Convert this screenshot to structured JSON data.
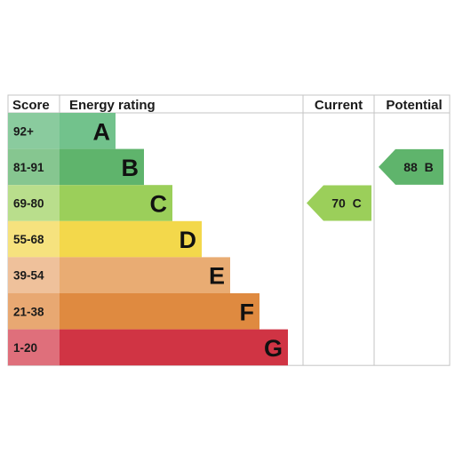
{
  "chart_data": {
    "type": "bar",
    "headers": {
      "score": "Score",
      "rating": "Energy rating",
      "current": "Current",
      "potential": "Potential"
    },
    "bands": [
      {
        "letter": "A",
        "range": "92+",
        "color": "#72c28c",
        "score_color": "#8acb9e"
      },
      {
        "letter": "B",
        "range": "81-91",
        "color": "#5fb46c",
        "score_color": "#86c690"
      },
      {
        "letter": "C",
        "range": "69-80",
        "color": "#9bcf5a",
        "score_color": "#b9de8c"
      },
      {
        "letter": "D",
        "range": "55-68",
        "color": "#f3d84b",
        "score_color": "#f6e27e"
      },
      {
        "letter": "E",
        "range": "39-54",
        "color": "#e9ac73",
        "score_color": "#efc19b"
      },
      {
        "letter": "F",
        "range": "21-38",
        "color": "#df8a40",
        "score_color": "#e8a872"
      },
      {
        "letter": "G",
        "range": "1-20",
        "color": "#d03444",
        "score_color": "#df6f7b"
      }
    ],
    "current": {
      "value": 70,
      "band": "C",
      "label": "70  C",
      "color": "#9bcf5a"
    },
    "potential": {
      "value": 88,
      "band": "B",
      "label": "88  B",
      "color": "#5fb46c"
    }
  }
}
